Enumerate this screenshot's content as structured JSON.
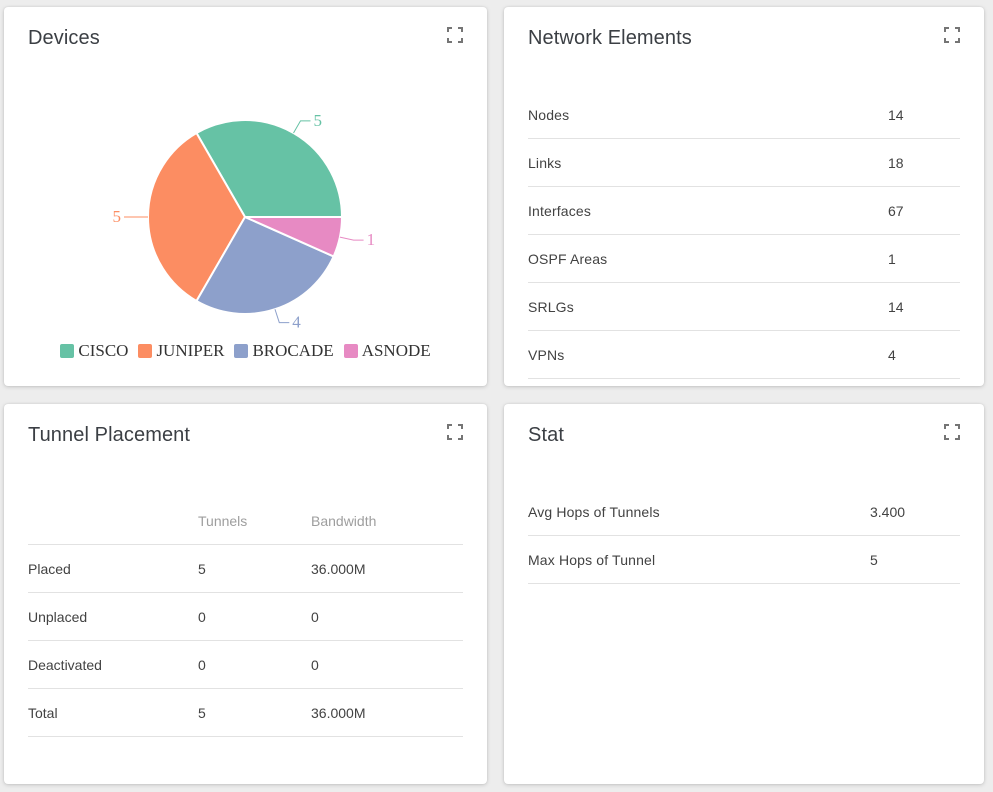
{
  "page": {
    "background": "#ededed",
    "card_background": "#ffffff",
    "divider_color": "#e2e2e2",
    "title_color": "#3b3f44",
    "text_color": "#424242",
    "muted_color": "#9e9e9e",
    "expand_icon": "fullscreen-expand"
  },
  "cards": {
    "devices": {
      "title": "Devices"
    },
    "network_elements": {
      "title": "Network Elements",
      "rows": [
        {
          "label": "Nodes",
          "value": "14"
        },
        {
          "label": "Links",
          "value": "18"
        },
        {
          "label": "Interfaces",
          "value": "67"
        },
        {
          "label": "OSPF Areas",
          "value": "1"
        },
        {
          "label": "SRLGs",
          "value": "14"
        },
        {
          "label": "VPNs",
          "value": "4"
        }
      ]
    },
    "tunnel_placement": {
      "title": "Tunnel Placement",
      "columns": [
        "",
        "Tunnels",
        "Bandwidth"
      ],
      "rows": [
        {
          "label": "Placed",
          "tunnels": "5",
          "bandwidth": "36.000M"
        },
        {
          "label": "Unplaced",
          "tunnels": "0",
          "bandwidth": "0"
        },
        {
          "label": "Deactivated",
          "tunnels": "0",
          "bandwidth": "0"
        },
        {
          "label": "Total",
          "tunnels": "5",
          "bandwidth": "36.000M"
        }
      ]
    },
    "stat": {
      "title": "Stat",
      "rows": [
        {
          "label": "Avg Hops of Tunnels",
          "value": "3.400"
        },
        {
          "label": "Max Hops of Tunnel",
          "value": "5"
        }
      ]
    }
  },
  "chart_data": {
    "type": "pie",
    "title": "Devices",
    "categories": [
      "CISCO",
      "JUNIPER",
      "BROCADE",
      "ASNODE"
    ],
    "values": [
      5,
      5,
      4,
      1
    ],
    "colors": [
      "#66c2a5",
      "#fc8d62",
      "#8da0cb",
      "#e78ac3"
    ],
    "legend_position": "bottom",
    "labels": "values-outside-with-leader-lines",
    "start_angle_deg": 0,
    "direction": "counterclockwise"
  }
}
